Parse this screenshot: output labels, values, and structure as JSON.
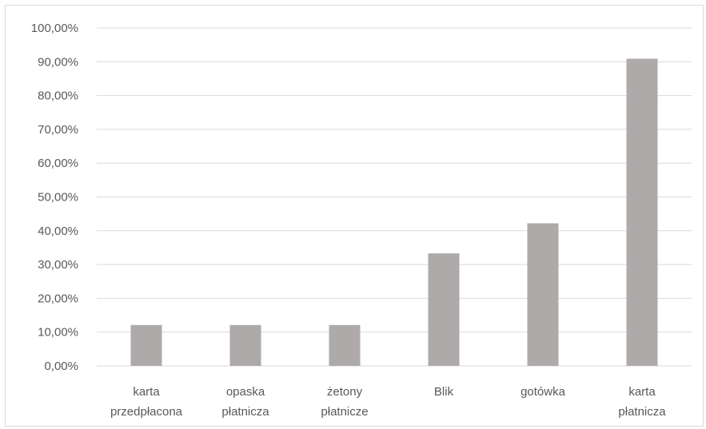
{
  "chart_data": {
    "type": "bar",
    "categories": [
      [
        "karta",
        "przedpłacona"
      ],
      [
        "opaska",
        "płatnicza"
      ],
      [
        "żetony",
        "płatnicze"
      ],
      [
        "Blik"
      ],
      [
        "gotówka"
      ],
      [
        "karta",
        "płatnicza"
      ]
    ],
    "values": [
      12.1,
      12.1,
      12.1,
      33.3,
      42.2,
      90.9
    ],
    "y_ticks": [
      "0,00%",
      "10,00%",
      "20,00%",
      "30,00%",
      "40,00%",
      "50,00%",
      "60,00%",
      "70,00%",
      "80,00%",
      "90,00%",
      "100,00%"
    ],
    "ylim": [
      0,
      100
    ],
    "grid": true,
    "bar_color": "#aeaaaa",
    "gridline_color": "#d9d9d9",
    "title": "",
    "xlabel": "",
    "ylabel": ""
  }
}
